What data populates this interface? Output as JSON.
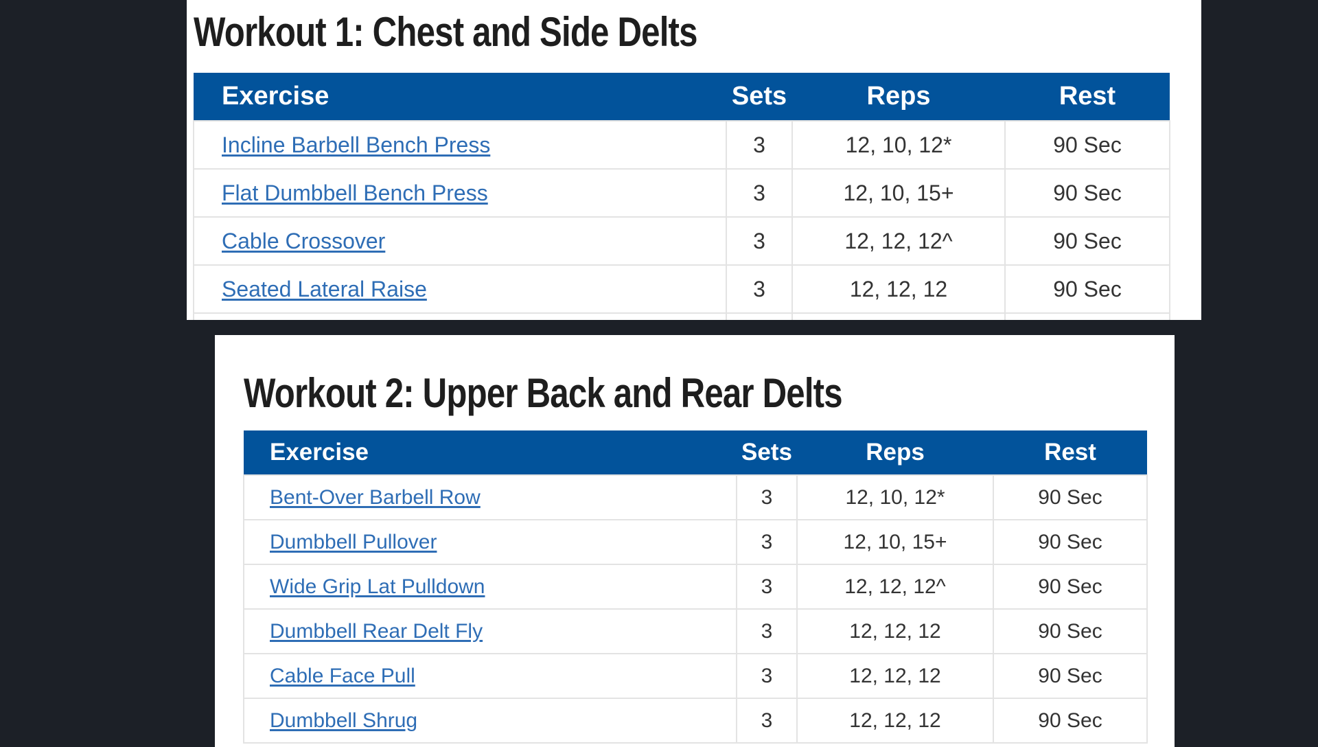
{
  "workout1": {
    "title": "Workout 1: Chest and Side Delts",
    "headers": {
      "exercise": "Exercise",
      "sets": "Sets",
      "reps": "Reps",
      "rest": "Rest"
    },
    "rows": [
      {
        "exercise": "Incline Barbell Bench Press",
        "sets": "3",
        "reps": "12, 10, 12*",
        "rest": "90 Sec"
      },
      {
        "exercise": "Flat Dumbbell Bench Press",
        "sets": "3",
        "reps": "12, 10, 15+",
        "rest": "90 Sec"
      },
      {
        "exercise": "Cable Crossover",
        "sets": "3",
        "reps": "12, 12, 12^",
        "rest": "90 Sec"
      },
      {
        "exercise": "Seated Lateral Raise",
        "sets": "3",
        "reps": "12, 12, 12",
        "rest": "90 Sec"
      }
    ]
  },
  "workout2": {
    "title": "Workout 2: Upper Back and Rear Delts",
    "headers": {
      "exercise": "Exercise",
      "sets": "Sets",
      "reps": "Reps",
      "rest": "Rest"
    },
    "rows": [
      {
        "exercise": "Bent-Over Barbell Row",
        "sets": "3",
        "reps": "12, 10, 12*",
        "rest": "90 Sec"
      },
      {
        "exercise": "Dumbbell Pullover",
        "sets": "3",
        "reps": "12, 10, 15+",
        "rest": "90 Sec"
      },
      {
        "exercise": "Wide Grip Lat Pulldown",
        "sets": "3",
        "reps": "12, 12, 12^",
        "rest": "90 Sec"
      },
      {
        "exercise": "Dumbbell Rear Delt Fly",
        "sets": "3",
        "reps": "12, 12, 12",
        "rest": "90 Sec"
      },
      {
        "exercise": "Cable Face Pull",
        "sets": "3",
        "reps": "12, 12, 12",
        "rest": "90 Sec"
      },
      {
        "exercise": "Dumbbell Shrug",
        "sets": "3",
        "reps": "12, 12, 12",
        "rest": "90 Sec"
      }
    ]
  },
  "colors": {
    "header_bg": "#02539b",
    "link": "#2e6db5",
    "page_bg": "#1c2027"
  }
}
